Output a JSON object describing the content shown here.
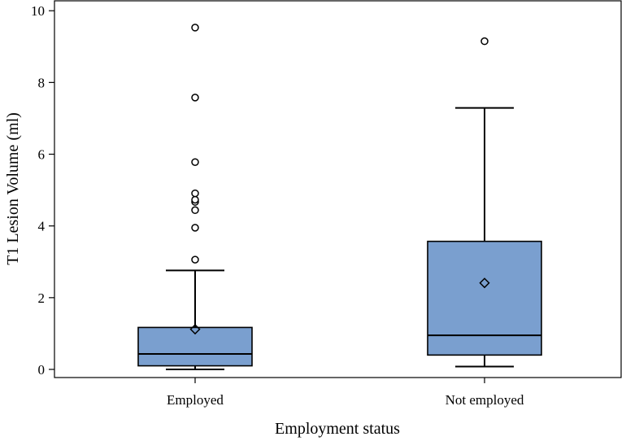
{
  "chart_data": {
    "type": "box",
    "xlabel": "Employment status",
    "ylabel": "T1 Lesion Volume (ml)",
    "ylim": [
      0,
      10.4
    ],
    "yticks": [
      0,
      2,
      4,
      6,
      8,
      10
    ],
    "grid": false,
    "legend": "none",
    "box_color": "#7a9fcf",
    "categories": [
      "Employed",
      "Not employed"
    ],
    "boxes": [
      {
        "category": "Employed",
        "whisker_low": 0.0,
        "q1": 0.1,
        "median": 0.43,
        "q3": 1.17,
        "whisker_high": 2.76,
        "mean": 1.12,
        "outliers": [
          3.06,
          3.95,
          4.44,
          4.67,
          4.73,
          4.91,
          5.78,
          7.58,
          9.53
        ]
      },
      {
        "category": "Not employed",
        "whisker_low": 0.08,
        "q1": 0.4,
        "median": 0.95,
        "q3": 3.57,
        "whisker_high": 7.29,
        "mean": 2.41,
        "outliers": [
          9.15
        ]
      }
    ]
  }
}
